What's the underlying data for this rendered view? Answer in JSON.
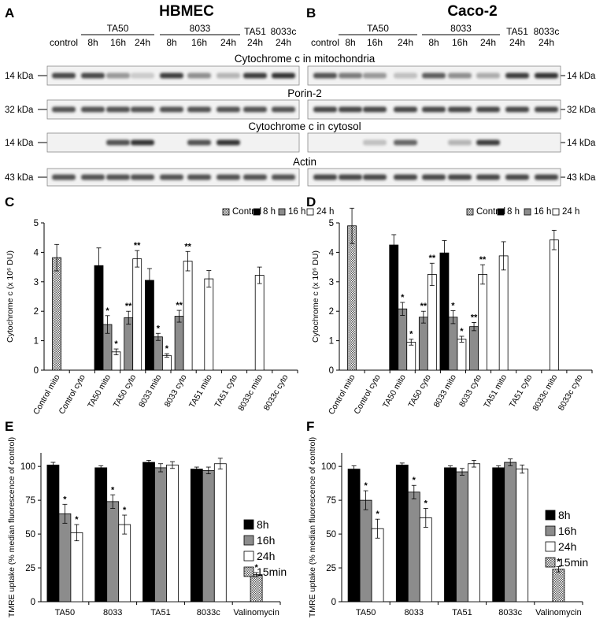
{
  "blots": {
    "panels": [
      {
        "letter": "A",
        "title": "HBMEC"
      },
      {
        "letter": "B",
        "title": "Caco-2"
      }
    ],
    "lane_headers": {
      "groups": [
        "TA50",
        "8033"
      ],
      "top_labels": [
        "TA51",
        "8033c"
      ],
      "lanes": [
        "control",
        "8h",
        "16h",
        "24h",
        "8h",
        "16h",
        "24h",
        "24h",
        "24h"
      ]
    },
    "rows": [
      {
        "label": "Cytochrome c in mitochondria",
        "kda": "14 kDa",
        "bands_A": [
          0.85,
          0.85,
          0.45,
          0.2,
          0.9,
          0.5,
          0.3,
          0.9,
          0.95
        ],
        "bands_B": [
          0.8,
          0.6,
          0.45,
          0.25,
          0.75,
          0.5,
          0.35,
          0.9,
          0.95
        ]
      },
      {
        "label": "Porin-2",
        "kda": "32 kDa",
        "bands_A": [
          0.8,
          0.8,
          0.8,
          0.8,
          0.8,
          0.8,
          0.8,
          0.8,
          0.8
        ],
        "bands_B": [
          0.85,
          0.85,
          0.85,
          0.85,
          0.85,
          0.85,
          0.85,
          0.85,
          0.85
        ]
      },
      {
        "label": "Cytochrome c in cytosol",
        "kda": "14 kDa",
        "bands_A": [
          0,
          0,
          0.8,
          0.95,
          0,
          0.8,
          0.95,
          0,
          0
        ],
        "bands_B": [
          0,
          0,
          0.25,
          0.7,
          0,
          0.3,
          0.9,
          0,
          0
        ]
      },
      {
        "label": "Actin",
        "kda": "43 kDa",
        "bands_A": [
          0.8,
          0.8,
          0.8,
          0.8,
          0.8,
          0.8,
          0.8,
          0.8,
          0.8
        ],
        "bands_B": [
          0.85,
          0.85,
          0.85,
          0.85,
          0.85,
          0.85,
          0.85,
          0.85,
          0.85
        ]
      }
    ]
  },
  "chart_data": [
    {
      "letter": "C",
      "type": "bar",
      "ylabel": "Cytochrome c (x 10⁶ DU)",
      "ylim": [
        0,
        5
      ],
      "yticks": [
        "0",
        "1",
        "2",
        "3",
        "4",
        "5"
      ],
      "legend": [
        "Control",
        "8 h",
        "16 h",
        "24 h"
      ],
      "categories": [
        "Control mito",
        "Control cyto",
        "TA50 mito",
        "TA50 cyto",
        "8033 mito",
        "8033 cyto",
        "TA51 mito",
        "TA51 cyto",
        "8033c mito",
        "8033c cyto"
      ],
      "bars": [
        {
          "cat": 0,
          "series": "Control",
          "value": 3.82,
          "err": 0.45
        },
        {
          "cat": 2,
          "series": "8 h",
          "value": 3.55,
          "err": 0.6
        },
        {
          "cat": 2,
          "series": "16 h",
          "value": 1.55,
          "err": 0.3,
          "sig": "*"
        },
        {
          "cat": 2,
          "series": "24 h",
          "value": 0.62,
          "err": 0.1,
          "sig": "*"
        },
        {
          "cat": 3,
          "series": "16 h",
          "value": 1.78,
          "err": 0.22,
          "sig": "**"
        },
        {
          "cat": 3,
          "series": "24 h",
          "value": 3.78,
          "err": 0.28,
          "sig": "**"
        },
        {
          "cat": 4,
          "series": "8 h",
          "value": 3.05,
          "err": 0.4
        },
        {
          "cat": 4,
          "series": "16 h",
          "value": 1.13,
          "err": 0.12,
          "sig": "*"
        },
        {
          "cat": 4,
          "series": "24 h",
          "value": 0.5,
          "err": 0.06,
          "sig": "*"
        },
        {
          "cat": 5,
          "series": "16 h",
          "value": 1.83,
          "err": 0.2,
          "sig": "**"
        },
        {
          "cat": 5,
          "series": "24 h",
          "value": 3.7,
          "err": 0.33,
          "sig": "**"
        },
        {
          "cat": 6,
          "series": "24 h",
          "value": 3.1,
          "err": 0.28
        },
        {
          "cat": 8,
          "series": "24 h",
          "value": 3.22,
          "err": 0.28
        }
      ]
    },
    {
      "letter": "D",
      "type": "bar",
      "ylabel": "Cytochrome c (x 10⁶ DU)",
      "ylim": [
        0,
        5
      ],
      "yticks": [
        "0",
        "1",
        "2",
        "3",
        "4",
        "5"
      ],
      "legend": [
        "Control",
        "8 h",
        "16 h",
        "24 h"
      ],
      "categories": [
        "Control mito",
        "Control cyto",
        "TA50 mito",
        "TA50 cyto",
        "8033 mito",
        "8033 cyto",
        "TA51 mito",
        "TA51 cyto",
        "8033c mito",
        "8033c cyto"
      ],
      "bars": [
        {
          "cat": 0,
          "series": "Control",
          "value": 4.9,
          "err": 0.6
        },
        {
          "cat": 2,
          "series": "8 h",
          "value": 4.25,
          "err": 0.35
        },
        {
          "cat": 2,
          "series": "16 h",
          "value": 2.08,
          "err": 0.22,
          "sig": "*"
        },
        {
          "cat": 2,
          "series": "24 h",
          "value": 0.95,
          "err": 0.1,
          "sig": "*"
        },
        {
          "cat": 3,
          "series": "16 h",
          "value": 1.8,
          "err": 0.2,
          "sig": "**"
        },
        {
          "cat": 3,
          "series": "24 h",
          "value": 3.25,
          "err": 0.38,
          "sig": "**"
        },
        {
          "cat": 4,
          "series": "8 h",
          "value": 3.98,
          "err": 0.42
        },
        {
          "cat": 4,
          "series": "16 h",
          "value": 1.8,
          "err": 0.22,
          "sig": "*"
        },
        {
          "cat": 4,
          "series": "24 h",
          "value": 1.05,
          "err": 0.1,
          "sig": "*"
        },
        {
          "cat": 5,
          "series": "16 h",
          "value": 1.48,
          "err": 0.14,
          "sig": "**"
        },
        {
          "cat": 5,
          "series": "24 h",
          "value": 3.25,
          "err": 0.33,
          "sig": "**"
        },
        {
          "cat": 6,
          "series": "24 h",
          "value": 3.88,
          "err": 0.48
        },
        {
          "cat": 8,
          "series": "24 h",
          "value": 4.42,
          "err": 0.33
        }
      ]
    },
    {
      "letter": "E",
      "type": "bar",
      "ylabel": "TMRE uptake (% median fluorescence of control)",
      "ylim": [
        0,
        110
      ],
      "yticks": [
        "0",
        "25",
        "50",
        "75",
        "100"
      ],
      "legend": [
        "8h",
        "16h",
        "24h",
        "15min"
      ],
      "categories": [
        "TA50",
        "8033",
        "TA51",
        "8033c",
        "Valinomycin"
      ],
      "bars": [
        {
          "cat": 0,
          "series": "8h",
          "value": 101,
          "err": 2
        },
        {
          "cat": 0,
          "series": "16h",
          "value": 65,
          "err": 7,
          "sig": "*"
        },
        {
          "cat": 0,
          "series": "24h",
          "value": 51,
          "err": 6,
          "sig": "*"
        },
        {
          "cat": 1,
          "series": "8h",
          "value": 99,
          "err": 1.5
        },
        {
          "cat": 1,
          "series": "16h",
          "value": 74,
          "err": 5,
          "sig": "*"
        },
        {
          "cat": 1,
          "series": "24h",
          "value": 57,
          "err": 7,
          "sig": "*"
        },
        {
          "cat": 2,
          "series": "8h",
          "value": 103,
          "err": 1.5
        },
        {
          "cat": 2,
          "series": "16h",
          "value": 99,
          "err": 3
        },
        {
          "cat": 2,
          "series": "24h",
          "value": 101,
          "err": 2.5
        },
        {
          "cat": 3,
          "series": "8h",
          "value": 98,
          "err": 1.5
        },
        {
          "cat": 3,
          "series": "16h",
          "value": 97,
          "err": 2.5
        },
        {
          "cat": 3,
          "series": "24h",
          "value": 102,
          "err": 4
        },
        {
          "cat": 4,
          "series": "15min",
          "value": 20,
          "err": 1.5,
          "sig": "*"
        }
      ]
    },
    {
      "letter": "F",
      "type": "bar",
      "ylabel": "TMRE uptake (% median fluorescence of control)",
      "ylim": [
        0,
        110
      ],
      "yticks": [
        "0",
        "25",
        "50",
        "75",
        "100"
      ],
      "legend": [
        "8h",
        "16h",
        "24h",
        "15min"
      ],
      "categories": [
        "TA50",
        "8033",
        "TA51",
        "8033c",
        "Valinomycin"
      ],
      "bars": [
        {
          "cat": 0,
          "series": "8h",
          "value": 98,
          "err": 2.5
        },
        {
          "cat": 0,
          "series": "16h",
          "value": 75,
          "err": 7,
          "sig": "*"
        },
        {
          "cat": 0,
          "series": "24h",
          "value": 54,
          "err": 7,
          "sig": "*"
        },
        {
          "cat": 1,
          "series": "8h",
          "value": 101,
          "err": 1.5
        },
        {
          "cat": 1,
          "series": "16h",
          "value": 81,
          "err": 5,
          "sig": "*"
        },
        {
          "cat": 1,
          "series": "24h",
          "value": 62,
          "err": 7,
          "sig": "*"
        },
        {
          "cat": 2,
          "series": "8h",
          "value": 99,
          "err": 1.5
        },
        {
          "cat": 2,
          "series": "16h",
          "value": 96,
          "err": 2.5
        },
        {
          "cat": 2,
          "series": "24h",
          "value": 102,
          "err": 2.5
        },
        {
          "cat": 3,
          "series": "8h",
          "value": 99,
          "err": 1.5
        },
        {
          "cat": 3,
          "series": "16h",
          "value": 103,
          "err": 2.5
        },
        {
          "cat": 3,
          "series": "24h",
          "value": 98,
          "err": 3
        },
        {
          "cat": 4,
          "series": "15min",
          "value": 24,
          "err": 2,
          "sig": "*"
        }
      ]
    }
  ],
  "colors": {
    "black": "#000000",
    "dark_gray": "#8c8c8c",
    "white": "#ffffff",
    "hatch": "#6a6a6a",
    "membrane": "#f2f2f2",
    "band": "#2a2a2a"
  }
}
